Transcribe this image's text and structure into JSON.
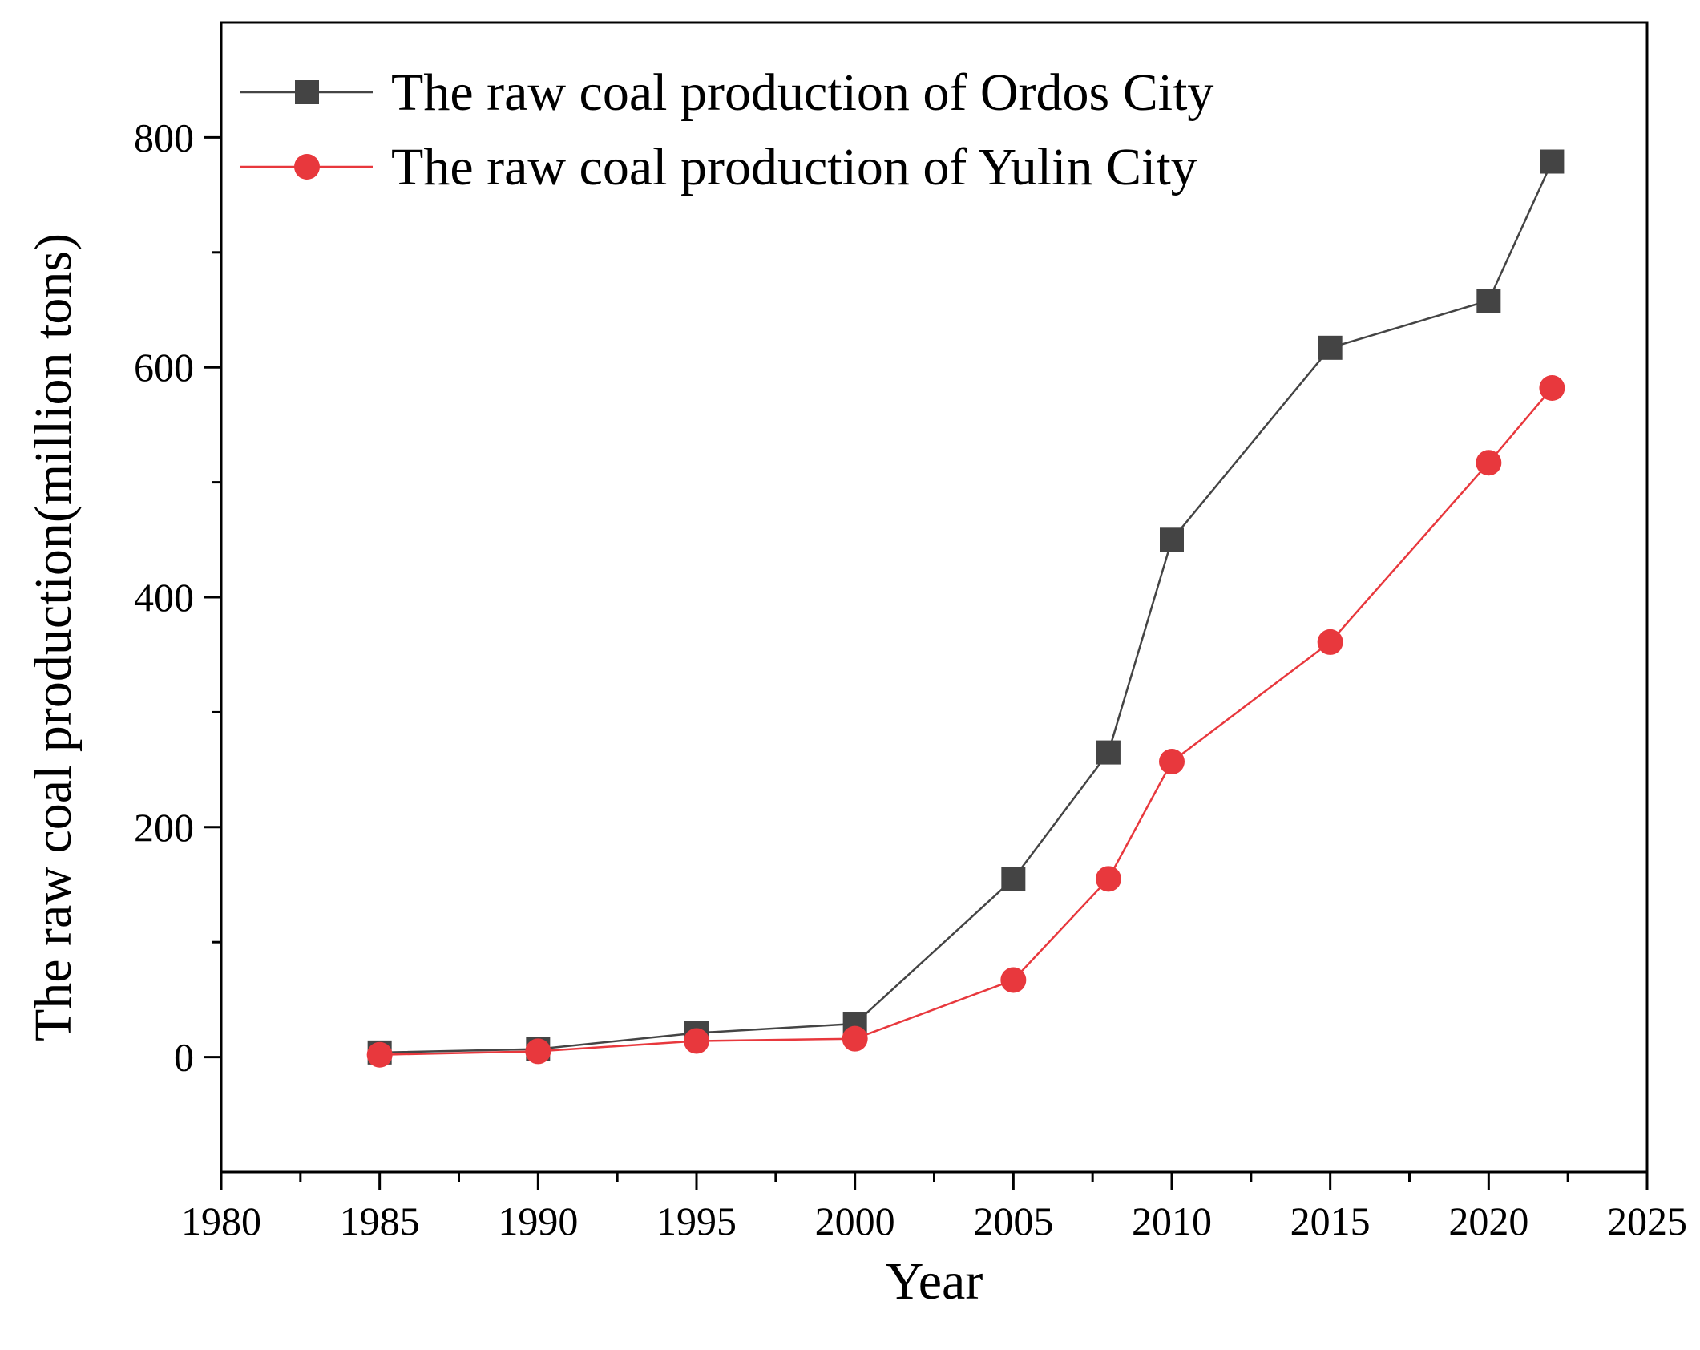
{
  "chart_data": {
    "type": "line",
    "xlabel": "Year",
    "ylabel": "The raw coal production(million tons)",
    "xlim": [
      1980,
      2025
    ],
    "ylim": [
      -100,
      900
    ],
    "xticks": [
      "1980",
      "1985",
      "1990",
      "1995",
      "2000",
      "2005",
      "2010",
      "2015",
      "2020",
      "2025"
    ],
    "yticks": [
      "0",
      "200",
      "400",
      "600",
      "800"
    ],
    "legend_position": "top-left",
    "grid": false,
    "series": [
      {
        "name": "The raw coal production of Ordos City",
        "color": "#444444",
        "marker": "square",
        "x": [
          1985,
          1990,
          1995,
          2000,
          2005,
          2008,
          2010,
          2015,
          2020,
          2022
        ],
        "y": [
          4,
          7,
          21,
          29,
          155,
          265,
          450,
          617,
          658,
          779
        ]
      },
      {
        "name": "The raw coal production of Yulin City",
        "color": "#e8383d",
        "marker": "circle",
        "x": [
          1985,
          1990,
          1995,
          2000,
          2005,
          2008,
          2010,
          2015,
          2020,
          2022
        ],
        "y": [
          2,
          5,
          14,
          16,
          67,
          155,
          257,
          361,
          517,
          582
        ]
      }
    ]
  }
}
